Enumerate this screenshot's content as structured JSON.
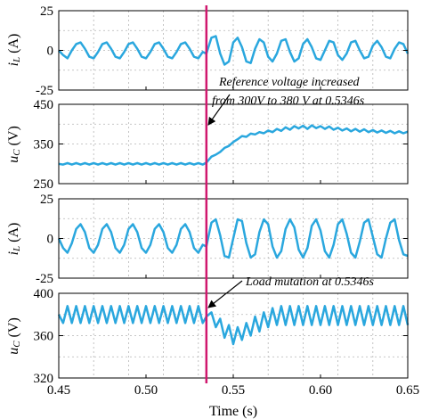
{
  "chart_data": [
    {
      "type": "line",
      "ylabel_main": "i",
      "ylabel_sub": "L",
      "ylabel_unit": " (A)",
      "ylim": [
        -25,
        25
      ],
      "yticks": [
        -25,
        0,
        25
      ],
      "grid": true,
      "x_range": [
        0.45,
        0.65
      ],
      "series": [
        {
          "color": "#2aa7de",
          "x": [
            0.45,
            0.4525,
            0.455,
            0.4575,
            0.46,
            0.4625,
            0.465,
            0.4675,
            0.47,
            0.4725,
            0.475,
            0.4775,
            0.48,
            0.4825,
            0.485,
            0.4875,
            0.49,
            0.4925,
            0.495,
            0.4975,
            0.5,
            0.5025,
            0.505,
            0.5075,
            0.51,
            0.5125,
            0.515,
            0.5175,
            0.52,
            0.5225,
            0.525,
            0.5275,
            0.53,
            0.5325,
            0.5346,
            0.5375,
            0.54,
            0.5425,
            0.545,
            0.5475,
            0.55,
            0.5525,
            0.555,
            0.5575,
            0.56,
            0.5625,
            0.565,
            0.5675,
            0.57,
            0.5725,
            0.575,
            0.5775,
            0.58,
            0.5825,
            0.585,
            0.5875,
            0.59,
            0.5925,
            0.595,
            0.5975,
            0.6,
            0.6025,
            0.605,
            0.6075,
            0.61,
            0.6125,
            0.615,
            0.6175,
            0.62,
            0.6225,
            0.625,
            0.6275,
            0.63,
            0.6325,
            0.635,
            0.6375,
            0.64,
            0.6425,
            0.645,
            0.6475,
            0.65
          ],
          "y": [
            0,
            -3,
            -5,
            0,
            4,
            5,
            1,
            -4,
            -5,
            -1,
            4,
            5,
            1,
            -4,
            -5,
            -1,
            4,
            5,
            1,
            -4,
            -5,
            -1,
            4,
            5,
            1,
            -4,
            -5,
            -1,
            4,
            5,
            1,
            -4,
            -5,
            -1,
            -2,
            8,
            9,
            -2,
            -9,
            -7,
            5,
            8,
            2,
            -7,
            -8,
            1,
            7,
            5,
            -4,
            -7,
            -2,
            6,
            7,
            -1,
            -7,
            -5,
            4,
            7,
            2,
            -5,
            -6,
            0,
            6,
            5,
            -3,
            -6,
            -2,
            5,
            6,
            0,
            -5,
            -4,
            3,
            6,
            2,
            -4,
            -5,
            1,
            5,
            4,
            -2
          ]
        }
      ]
    },
    {
      "type": "line",
      "ylabel_main": "u",
      "ylabel_sub": "C",
      "ylabel_unit": " (V)",
      "ylim": [
        250,
        450
      ],
      "yticks": [
        250,
        350,
        450
      ],
      "grid": true,
      "x_range": [
        0.45,
        0.65
      ],
      "series": [
        {
          "color": "#2aa7de",
          "x": [
            0.45,
            0.4525,
            0.455,
            0.4575,
            0.46,
            0.4625,
            0.465,
            0.4675,
            0.47,
            0.4725,
            0.475,
            0.4775,
            0.48,
            0.4825,
            0.485,
            0.4875,
            0.49,
            0.4925,
            0.495,
            0.4975,
            0.5,
            0.5025,
            0.505,
            0.5075,
            0.51,
            0.5125,
            0.515,
            0.5175,
            0.52,
            0.5225,
            0.525,
            0.5275,
            0.53,
            0.5325,
            0.5346,
            0.5375,
            0.54,
            0.5425,
            0.545,
            0.5475,
            0.55,
            0.5525,
            0.555,
            0.5575,
            0.56,
            0.5625,
            0.565,
            0.5675,
            0.57,
            0.5725,
            0.575,
            0.5775,
            0.58,
            0.5825,
            0.585,
            0.5875,
            0.59,
            0.5925,
            0.595,
            0.5975,
            0.6,
            0.6025,
            0.605,
            0.6075,
            0.61,
            0.6125,
            0.615,
            0.6175,
            0.62,
            0.6225,
            0.625,
            0.6275,
            0.63,
            0.6325,
            0.635,
            0.6375,
            0.64,
            0.6425,
            0.645,
            0.6475,
            0.65
          ],
          "y": [
            300,
            298,
            302,
            298,
            302,
            298,
            302,
            298,
            302,
            298,
            302,
            298,
            302,
            298,
            302,
            298,
            302,
            298,
            302,
            298,
            302,
            298,
            302,
            298,
            302,
            298,
            302,
            298,
            302,
            298,
            302,
            298,
            302,
            298,
            303,
            318,
            323,
            330,
            340,
            345,
            355,
            362,
            370,
            368,
            376,
            374,
            380,
            377,
            384,
            380,
            388,
            383,
            392,
            386,
            395,
            389,
            396,
            388,
            397,
            390,
            395,
            388,
            394,
            386,
            391,
            384,
            389,
            382,
            388,
            381,
            387,
            380,
            385,
            379,
            384,
            378,
            383,
            377,
            382,
            377,
            381
          ]
        }
      ]
    },
    {
      "type": "line",
      "ylabel_main": "i",
      "ylabel_sub": "L",
      "ylabel_unit": " (A)",
      "ylim": [
        -25,
        25
      ],
      "yticks": [
        -25,
        0,
        25
      ],
      "grid": true,
      "x_range": [
        0.45,
        0.65
      ],
      "series": [
        {
          "color": "#2aa7de",
          "x": [
            0.45,
            0.4525,
            0.455,
            0.4575,
            0.46,
            0.4625,
            0.465,
            0.4675,
            0.47,
            0.4725,
            0.475,
            0.4775,
            0.48,
            0.4825,
            0.485,
            0.4875,
            0.49,
            0.4925,
            0.495,
            0.4975,
            0.5,
            0.5025,
            0.505,
            0.5075,
            0.51,
            0.5125,
            0.515,
            0.5175,
            0.52,
            0.5225,
            0.525,
            0.5275,
            0.53,
            0.5325,
            0.5346,
            0.5375,
            0.54,
            0.5425,
            0.545,
            0.5475,
            0.55,
            0.5525,
            0.555,
            0.5575,
            0.56,
            0.5625,
            0.565,
            0.5675,
            0.57,
            0.5725,
            0.575,
            0.5775,
            0.58,
            0.5825,
            0.585,
            0.5875,
            0.59,
            0.5925,
            0.595,
            0.5975,
            0.6,
            0.6025,
            0.605,
            0.6075,
            0.61,
            0.6125,
            0.615,
            0.6175,
            0.62,
            0.6225,
            0.625,
            0.6275,
            0.63,
            0.6325,
            0.635,
            0.6375,
            0.64,
            0.6425,
            0.645,
            0.6475,
            0.65
          ],
          "y": [
            0,
            -6,
            -9,
            -3,
            6,
            9,
            4,
            -6,
            -9,
            -4,
            6,
            9,
            4,
            -6,
            -9,
            -4,
            6,
            9,
            4,
            -6,
            -9,
            -4,
            6,
            9,
            4,
            -6,
            -9,
            -4,
            6,
            9,
            4,
            -6,
            -9,
            -4,
            -5,
            10,
            12,
            2,
            -11,
            -12,
            0,
            12,
            11,
            -3,
            -12,
            -10,
            4,
            12,
            9,
            -5,
            -12,
            -8,
            6,
            12,
            7,
            -7,
            -12,
            -6,
            8,
            12,
            5,
            -8,
            -12,
            -4,
            9,
            12,
            3,
            -9,
            -12,
            -2,
            10,
            12,
            1,
            -10,
            -12,
            0,
            10,
            12,
            -1,
            -10,
            -11
          ]
        }
      ]
    },
    {
      "type": "line",
      "ylabel_main": "u",
      "ylabel_sub": "C",
      "ylabel_unit": " (V)",
      "ylim": [
        320,
        400
      ],
      "yticks": [
        320,
        360,
        400
      ],
      "grid": true,
      "x_range": [
        0.45,
        0.65
      ],
      "xticks": [
        "0.45",
        "0.50",
        "0.55",
        "0.60",
        "0.65"
      ],
      "xlabel": "Time (s)",
      "series": [
        {
          "color": "#2aa7de",
          "x": [
            0.45,
            0.4525,
            0.455,
            0.4575,
            0.46,
            0.4625,
            0.465,
            0.4675,
            0.47,
            0.4725,
            0.475,
            0.4775,
            0.48,
            0.4825,
            0.485,
            0.4875,
            0.49,
            0.4925,
            0.495,
            0.4975,
            0.5,
            0.5025,
            0.505,
            0.5075,
            0.51,
            0.5125,
            0.515,
            0.5175,
            0.52,
            0.5225,
            0.525,
            0.5275,
            0.53,
            0.5325,
            0.5346,
            0.5375,
            0.54,
            0.5425,
            0.545,
            0.5475,
            0.55,
            0.5525,
            0.555,
            0.5575,
            0.56,
            0.5625,
            0.565,
            0.5675,
            0.57,
            0.5725,
            0.575,
            0.5775,
            0.58,
            0.5825,
            0.585,
            0.5875,
            0.59,
            0.5925,
            0.595,
            0.5975,
            0.6,
            0.6025,
            0.605,
            0.6075,
            0.61,
            0.6125,
            0.615,
            0.6175,
            0.62,
            0.6225,
            0.625,
            0.6275,
            0.63,
            0.6325,
            0.635,
            0.6375,
            0.64,
            0.6425,
            0.645,
            0.6475,
            0.65
          ],
          "y": [
            380,
            372,
            388,
            372,
            388,
            372,
            388,
            372,
            388,
            372,
            388,
            372,
            388,
            372,
            388,
            372,
            388,
            372,
            388,
            372,
            388,
            372,
            388,
            372,
            388,
            372,
            388,
            372,
            388,
            372,
            388,
            372,
            388,
            372,
            378,
            382,
            368,
            376,
            358,
            370,
            352,
            368,
            356,
            372,
            360,
            378,
            364,
            382,
            368,
            386,
            370,
            388,
            370,
            388,
            370,
            388,
            370,
            388,
            370,
            388,
            370,
            388,
            370,
            388,
            370,
            388,
            370,
            388,
            370,
            388,
            370,
            388,
            370,
            388,
            370,
            388,
            370,
            388,
            370,
            388,
            370
          ]
        }
      ]
    }
  ],
  "event_line": {
    "x": 0.5346,
    "color": "#d0186e"
  },
  "annotations": [
    {
      "lines": [
        "Reference voltage increased",
        "from 300V to 380 V at 0.5346s"
      ]
    },
    {
      "lines": [
        "Load mutation at 0.5346s"
      ]
    }
  ]
}
